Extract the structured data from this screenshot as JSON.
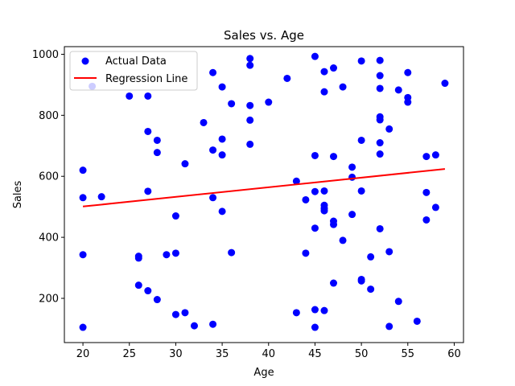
{
  "chart_data": {
    "type": "scatter",
    "title": "Sales vs. Age",
    "xlabel": "Age",
    "ylabel": "Sales",
    "xlim": [
      18,
      61
    ],
    "ylim": [
      55,
      1025
    ],
    "xticks": [
      20,
      25,
      30,
      35,
      40,
      45,
      50,
      55,
      60
    ],
    "yticks": [
      200,
      400,
      600,
      800,
      1000
    ],
    "grid": false,
    "legend": {
      "placement": "top-left",
      "entries": [
        "Actual Data",
        "Regression Line"
      ]
    },
    "colors": {
      "points": "#0000ff",
      "line": "#ff0000"
    },
    "series": [
      {
        "name": "Actual Data",
        "kind": "scatter",
        "points": [
          [
            20,
            105
          ],
          [
            20,
            343
          ],
          [
            20,
            530
          ],
          [
            20,
            620
          ],
          [
            21,
            895
          ],
          [
            22,
            533
          ],
          [
            25,
            863
          ],
          [
            26,
            243
          ],
          [
            26,
            332
          ],
          [
            26,
            338
          ],
          [
            27,
            225
          ],
          [
            27,
            551
          ],
          [
            27,
            747
          ],
          [
            27,
            863
          ],
          [
            28,
            196
          ],
          [
            28,
            678
          ],
          [
            28,
            718
          ],
          [
            29,
            343
          ],
          [
            30,
            147
          ],
          [
            30,
            348
          ],
          [
            30,
            470
          ],
          [
            31,
            153
          ],
          [
            31,
            641
          ],
          [
            32,
            110
          ],
          [
            33,
            776
          ],
          [
            34,
            115
          ],
          [
            34,
            530
          ],
          [
            34,
            686
          ],
          [
            34,
            940
          ],
          [
            35,
            485
          ],
          [
            35,
            670
          ],
          [
            35,
            722
          ],
          [
            35,
            893
          ],
          [
            36,
            350
          ],
          [
            36,
            838
          ],
          [
            38,
            705
          ],
          [
            38,
            784
          ],
          [
            38,
            832
          ],
          [
            38,
            964
          ],
          [
            38,
            986
          ],
          [
            40,
            843
          ],
          [
            42,
            921
          ],
          [
            43,
            153
          ],
          [
            43,
            584
          ],
          [
            44,
            348
          ],
          [
            44,
            523
          ],
          [
            45,
            105
          ],
          [
            45,
            163
          ],
          [
            45,
            430
          ],
          [
            45,
            550
          ],
          [
            45,
            668
          ],
          [
            45,
            993
          ],
          [
            46,
            160
          ],
          [
            46,
            487
          ],
          [
            46,
            495
          ],
          [
            46,
            505
          ],
          [
            46,
            552
          ],
          [
            46,
            877
          ],
          [
            46,
            943
          ],
          [
            47,
            250
          ],
          [
            47,
            442
          ],
          [
            47,
            453
          ],
          [
            47,
            665
          ],
          [
            47,
            955
          ],
          [
            48,
            390
          ],
          [
            48,
            893
          ],
          [
            49,
            475
          ],
          [
            49,
            597
          ],
          [
            49,
            630
          ],
          [
            50,
            257
          ],
          [
            50,
            262
          ],
          [
            50,
            552
          ],
          [
            50,
            718
          ],
          [
            50,
            978
          ],
          [
            51,
            230
          ],
          [
            51,
            336
          ],
          [
            52,
            428
          ],
          [
            52,
            673
          ],
          [
            52,
            710
          ],
          [
            52,
            785
          ],
          [
            52,
            795
          ],
          [
            52,
            888
          ],
          [
            52,
            930
          ],
          [
            52,
            980
          ],
          [
            53,
            108
          ],
          [
            53,
            353
          ],
          [
            53,
            755
          ],
          [
            54,
            190
          ],
          [
            54,
            883
          ],
          [
            55,
            843
          ],
          [
            55,
            858
          ],
          [
            55,
            940
          ],
          [
            56,
            125
          ],
          [
            57,
            457
          ],
          [
            57,
            547
          ],
          [
            57,
            665
          ],
          [
            58,
            498
          ],
          [
            58,
            670
          ],
          [
            59,
            905
          ]
        ]
      },
      {
        "name": "Regression Line",
        "kind": "line",
        "points": [
          [
            20,
            501
          ],
          [
            59,
            624
          ]
        ]
      }
    ]
  }
}
